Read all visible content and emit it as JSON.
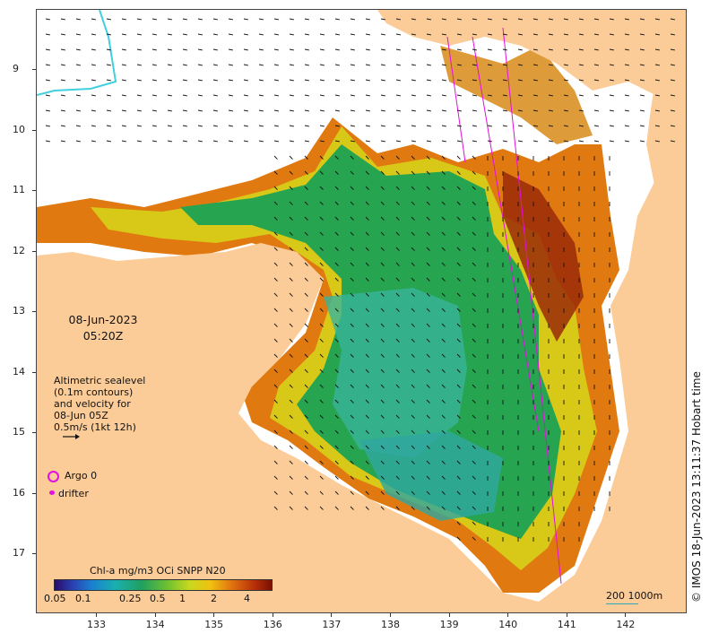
{
  "map": {
    "datetime_date": "08-Jun-2023",
    "datetime_time": "05:20Z",
    "altimetry_line1": "Altimetric sealevel",
    "altimetry_line2": "(0.1m contours)",
    "altimetry_line3": "and velocity for",
    "altimetry_line4": "08-Jun 05Z",
    "altimetry_line5": "0.5m/s (1kt 12h)",
    "legend_argo": "Argo 0",
    "legend_drifter": "drifter",
    "copyright": "© IMOS 18-Jun-2023 13:11:37 Hobart time",
    "colorbar_title": "Chl-a mg/m3 OCi SNPP N20",
    "colorbar_ticks": [
      "0.05",
      "0.1",
      "0.25",
      "0.5",
      "1",
      "2",
      "4"
    ],
    "scale_label": "200  1000m",
    "lat_ticks": [
      "9",
      "10",
      "11",
      "12",
      "13",
      "14",
      "15",
      "16",
      "17"
    ],
    "lon_ticks": [
      "133",
      "134",
      "135",
      "136",
      "137",
      "138",
      "139",
      "140",
      "141",
      "142"
    ],
    "colors": {
      "land": "#fccc98",
      "water_green": "#20a050",
      "water_teal": "#30b090",
      "high_chl": "#c05010",
      "argo": "#e010e0",
      "shelf_contour": "#40d0e0"
    }
  }
}
